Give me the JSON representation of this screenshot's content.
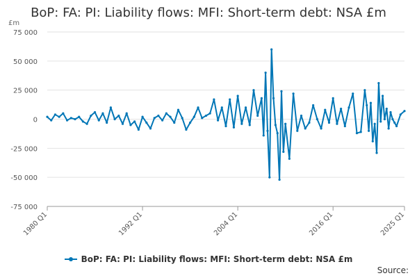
{
  "chart_data": {
    "type": "line",
    "title": "BoP: FA: PI: Liability flows: MFI: Short-term debt: NSA £m",
    "ylabel": "£m",
    "xlabel": "",
    "ylim": [
      -75000,
      75000
    ],
    "yticks": [
      "75 000",
      "50 000",
      "25 000",
      "0",
      "-25 000",
      "-50 000",
      "-75 000"
    ],
    "ytick_values": [
      75000,
      50000,
      25000,
      0,
      -25000,
      -50000,
      -75000
    ],
    "xlim": [
      1980.0,
      2025.0
    ],
    "xticks": [
      "1980 Q1",
      "1992 Q1",
      "2004 Q1",
      "2016 Q1",
      "2025 Q1"
    ],
    "xtick_values": [
      1980.0,
      1992.0,
      2004.0,
      2016.0,
      2025.0
    ],
    "grid": "horizontal",
    "legend_position": "bottom",
    "series": [
      {
        "name": "BoP: FA: PI: Liability flows: MFI: Short-term debt: NSA £m",
        "color": "#0076b6",
        "x": [
          1980.0,
          1980.5,
          1981.0,
          1981.5,
          1982.0,
          1982.5,
          1983.0,
          1983.5,
          1984.0,
          1984.5,
          1985.0,
          1985.5,
          1986.0,
          1986.5,
          1987.0,
          1987.5,
          1988.0,
          1988.5,
          1989.0,
          1989.5,
          1990.0,
          1990.5,
          1991.0,
          1991.5,
          1992.0,
          1992.5,
          1993.0,
          1993.5,
          1994.0,
          1994.5,
          1995.0,
          1995.5,
          1996.0,
          1996.5,
          1997.0,
          1997.5,
          1998.0,
          1998.5,
          1999.0,
          1999.5,
          2000.0,
          2000.5,
          2001.0,
          2001.5,
          2002.0,
          2002.5,
          2003.0,
          2003.5,
          2004.0,
          2004.5,
          2005.0,
          2005.5,
          2006.0,
          2006.5,
          2007.0,
          2007.25,
          2007.5,
          2007.75,
          2008.0,
          2008.25,
          2008.5,
          2008.75,
          2009.0,
          2009.25,
          2009.5,
          2009.75,
          2010.0,
          2010.5,
          2011.0,
          2011.5,
          2012.0,
          2012.5,
          2013.0,
          2013.5,
          2014.0,
          2014.5,
          2015.0,
          2015.5,
          2016.0,
          2016.5,
          2017.0,
          2017.5,
          2018.0,
          2018.5,
          2019.0,
          2019.5,
          2020.0,
          2020.25,
          2020.5,
          2020.75,
          2021.0,
          2021.25,
          2021.5,
          2021.75,
          2022.0,
          2022.25,
          2022.5,
          2022.75,
          2023.0,
          2023.25,
          2023.5,
          2023.75,
          2024.0,
          2024.5,
          2025.0
        ],
        "values": [
          2000,
          -1000,
          4000,
          2000,
          5000,
          -1000,
          1000,
          0,
          2000,
          -2000,
          -4000,
          3000,
          6000,
          -1000,
          5000,
          -3000,
          10000,
          0,
          3000,
          -4000,
          5000,
          -5000,
          -2000,
          -9000,
          2000,
          -3000,
          -8000,
          1000,
          3000,
          -1000,
          5000,
          2000,
          -3000,
          8000,
          1000,
          -9000,
          -3000,
          2000,
          10000,
          1000,
          3000,
          5000,
          17000,
          -1000,
          10000,
          -6000,
          17000,
          -7000,
          20000,
          -4000,
          10000,
          -5000,
          25000,
          3000,
          18000,
          -14000,
          40000,
          -10000,
          -50000,
          60000,
          18000,
          -5000,
          -12000,
          -52000,
          24000,
          -28000,
          -4000,
          -34000,
          22000,
          -10000,
          3000,
          -8000,
          -3000,
          12000,
          0,
          -8000,
          8000,
          -3000,
          18000,
          -4000,
          9000,
          -6000,
          10000,
          22000,
          -12000,
          -11000,
          25000,
          12000,
          -10000,
          14000,
          -19000,
          -4000,
          -29000,
          31000,
          -2000,
          20000,
          0,
          9000,
          -8000,
          6000,
          0,
          -3000,
          -6000,
          4000,
          7000
        ]
      }
    ],
    "source_label": "Source:"
  }
}
